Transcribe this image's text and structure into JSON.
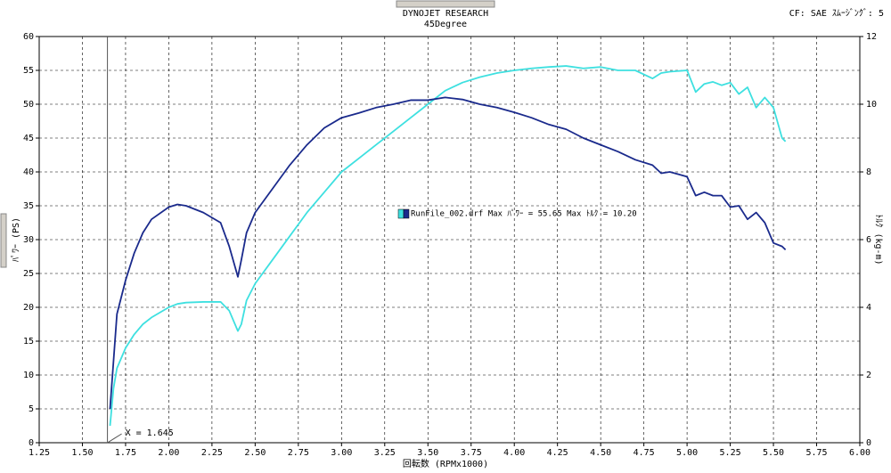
{
  "header": {
    "title": "DYNOJET  RESEARCH",
    "subtitle": "45Degree",
    "settings": "CF: SAE  ｽﾑｰｼﾞﾝｸﾞ: 5"
  },
  "chart_data": {
    "type": "line",
    "xlabel": "回転数 (RPMx1000)",
    "ylabel": "ﾊﾟﾜｰ (PS)",
    "y2label": "ﾄﾙｸ (kg-m)",
    "legend": "RunFile_002.drf  Max ﾊﾟﾜｰ = 55.65   Max ﾄﾙｸ = 10.20",
    "cursor": {
      "x": 1.645,
      "label": "X = 1.645"
    },
    "grid": true,
    "xlim": [
      1.25,
      6.0
    ],
    "xticks": [
      1.25,
      {
        "value": 1.5,
        "label": "1.50"
      },
      1.75,
      {
        "value": 2.0,
        "label": "2.00"
      },
      2.25,
      {
        "value": 2.5,
        "label": "2.50"
      },
      2.75,
      {
        "value": 3.0,
        "label": "3.00"
      },
      3.25,
      {
        "value": 3.5,
        "label": "3.50"
      },
      3.75,
      {
        "value": 4.0,
        "label": "4.00"
      },
      4.25,
      {
        "value": 4.5,
        "label": "4.50"
      },
      4.75,
      {
        "value": 5.0,
        "label": "5.00"
      },
      5.25,
      {
        "value": 5.5,
        "label": "5.50"
      },
      5.75,
      {
        "value": 6.0,
        "label": "6.00"
      }
    ],
    "ylim": [
      0,
      60
    ],
    "yticks": [
      0,
      5,
      10,
      15,
      20,
      25,
      30,
      35,
      40,
      45,
      50,
      55,
      60
    ],
    "y2lim": [
      0,
      12
    ],
    "y2ticks": [
      0,
      2,
      4,
      6,
      8,
      10,
      12
    ],
    "x": [
      1.66,
      1.68,
      1.7,
      1.75,
      1.8,
      1.85,
      1.9,
      2.0,
      2.05,
      2.1,
      2.2,
      2.3,
      2.35,
      2.4,
      2.42,
      2.45,
      2.5,
      2.6,
      2.7,
      2.8,
      2.9,
      3.0,
      3.1,
      3.2,
      3.3,
      3.4,
      3.5,
      3.6,
      3.7,
      3.8,
      3.9,
      4.0,
      4.1,
      4.2,
      4.3,
      4.4,
      4.5,
      4.6,
      4.7,
      4.8,
      4.85,
      4.9,
      5.0,
      5.05,
      5.1,
      5.15,
      5.2,
      5.25,
      5.3,
      5.35,
      5.4,
      5.45,
      5.5,
      5.55,
      5.57
    ],
    "series": [
      {
        "color": "#3ee0e0",
        "values": [
          2.5,
          8,
          11,
          14,
          16,
          17.5,
          18.5,
          20,
          20.5,
          20.7,
          20.8,
          20.8,
          19.5,
          16.5,
          17.5,
          21,
          23.5,
          27,
          30.5,
          34,
          37,
          40,
          42,
          44,
          46,
          48,
          50,
          52,
          53.2,
          54,
          54.6,
          55,
          55.3,
          55.5,
          55.65,
          55.3,
          55.5,
          55,
          55,
          53.8,
          54.6,
          54.8,
          55,
          51.8,
          53,
          53.3,
          52.8,
          53.2,
          51.5,
          52.5,
          49.5,
          51,
          49.5,
          45,
          44.5
        ]
      },
      {
        "color": "#1a2a8c",
        "axis": "y2",
        "values": [
          1.0,
          2.4,
          3.8,
          4.8,
          5.6,
          6.2,
          6.6,
          6.96,
          7.04,
          7.0,
          6.8,
          6.5,
          5.8,
          4.9,
          5.4,
          6.2,
          6.8,
          7.5,
          8.2,
          8.8,
          9.3,
          9.6,
          9.74,
          9.9,
          10.0,
          10.12,
          10.12,
          10.2,
          10.14,
          10.0,
          9.9,
          9.76,
          9.6,
          9.4,
          9.26,
          9.0,
          8.8,
          8.6,
          8.36,
          8.2,
          7.96,
          8.0,
          7.86,
          7.3,
          7.4,
          7.3,
          7.3,
          6.96,
          7.0,
          6.6,
          6.8,
          6.5,
          5.9,
          5.8,
          5.7
        ]
      }
    ]
  }
}
